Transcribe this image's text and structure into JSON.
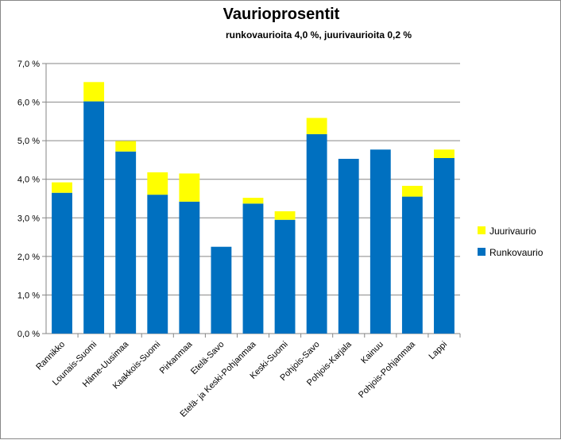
{
  "chart_data": {
    "type": "bar",
    "stacked": true,
    "title": "Vaurioprosentit",
    "subtitle": "runkovaurioita 4,0 %, juurivaurioita 0,2 %",
    "categories": [
      "Rannikko",
      "Lounais-Suomi",
      "Häme-Uusimaa",
      "Kaakkois-Suomi",
      "Pirkanmaa",
      "Etelä-Savo",
      "Etelä- ja Keski-Pohjanmaa",
      "Keski-Suomi",
      "Pohjois-Savo",
      "Pohjois-Karjala",
      "Kainuu",
      "Pohjois-Pohjanmaa",
      "Lappi"
    ],
    "series": [
      {
        "name": "Runkovaurio",
        "color": "#0070C0",
        "values": [
          3.65,
          6.02,
          4.72,
          3.6,
          3.42,
          2.25,
          3.37,
          2.95,
          5.17,
          4.53,
          4.77,
          3.55,
          4.55
        ]
      },
      {
        "name": "Juurivaurio",
        "color": "#FFFF00",
        "values": [
          0.27,
          0.5,
          0.27,
          0.58,
          0.73,
          0.0,
          0.15,
          0.22,
          0.42,
          0.0,
          0.0,
          0.28,
          0.22
        ]
      }
    ],
    "y_ticks": [
      "0,0 %",
      "1,0 %",
      "2,0 %",
      "3,0 %",
      "4,0 %",
      "5,0 %",
      "6,0 %",
      "7,0 %"
    ],
    "ylim": [
      0,
      7
    ],
    "grid": true,
    "legend_order": [
      "Juurivaurio",
      "Runkovaurio"
    ],
    "legend_position": "right"
  }
}
